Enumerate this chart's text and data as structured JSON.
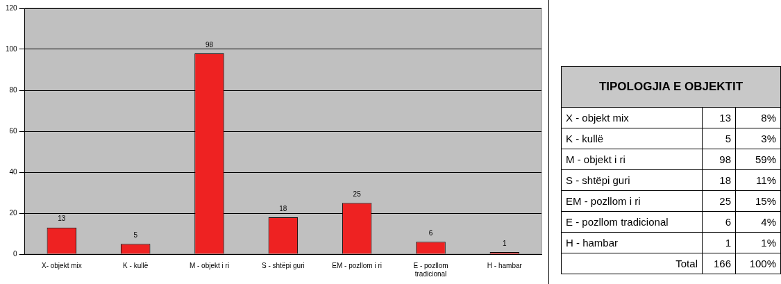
{
  "chart_data": [
    {
      "type": "bar",
      "categories": [
        "X- objekt mix",
        "K - kullë",
        "M - objekt i ri",
        "S - shtëpi guri",
        "EM - pozllom i ri",
        "E - pozllom tradicional",
        "H - hambar"
      ],
      "values": [
        13,
        5,
        98,
        18,
        25,
        6,
        1
      ],
      "color": "#ee2222",
      "ylim": [
        0,
        120
      ],
      "yticks": [
        0,
        20,
        40,
        60,
        80,
        100,
        120
      ],
      "grid": "y",
      "legend": false,
      "data_labels": true
    },
    {
      "type": "other",
      "title": "TIPOLOGJIA E OBJEKTIT",
      "categories": [
        "X - objekt mix",
        "K - kullë",
        "M - objekt i ri",
        "S - shtëpi guri",
        "EM - pozllom i ri",
        "E - pozllom tradicional",
        "H - hambar"
      ],
      "annotations": [
        "13",
        "8%",
        "5",
        "3%",
        "98",
        "59%",
        "18",
        "11%",
        "25",
        "15%",
        "6",
        "4%",
        "1",
        "1%",
        "Total",
        "166",
        "100%"
      ]
    }
  ]
}
